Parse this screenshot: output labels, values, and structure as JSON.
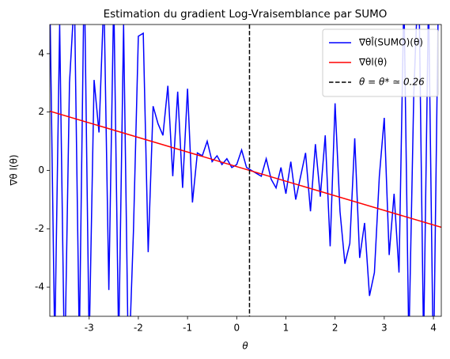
{
  "chart_data": {
    "type": "line",
    "title": "Estimation du gradient Log-Vraisemblance par SUMO",
    "xlabel": "θ",
    "ylabel": "∇θ l(θ)",
    "xlim": [
      -3.8,
      4.16
    ],
    "ylim": [
      -5,
      5
    ],
    "xticks": [
      -3,
      -2,
      -1,
      0,
      1,
      2,
      3,
      4
    ],
    "yticks": [
      -4,
      -2,
      0,
      2,
      4
    ],
    "legend": "upper right",
    "series": [
      {
        "name": "∇θl̂(SUMO)(θ)",
        "color": "#0000ff",
        "x": [
          -3.8,
          -3.7,
          -3.6,
          -3.5,
          -3.4,
          -3.3,
          -3.2,
          -3.1,
          -3.0,
          -2.9,
          -2.8,
          -2.7,
          -2.6,
          -2.5,
          -2.4,
          -2.3,
          -2.2,
          -2.1,
          -2.0,
          -1.9,
          -1.8,
          -1.7,
          -1.6,
          -1.5,
          -1.4,
          -1.3,
          -1.2,
          -1.1,
          -1.0,
          -0.9,
          -0.8,
          -0.7,
          -0.6,
          -0.5,
          -0.4,
          -0.3,
          -0.2,
          -0.1,
          0.0,
          0.1,
          0.2,
          0.3,
          0.4,
          0.5,
          0.6,
          0.7,
          0.8,
          0.9,
          1.0,
          1.1,
          1.2,
          1.3,
          1.4,
          1.5,
          1.6,
          1.7,
          1.8,
          1.9,
          2.0,
          2.1,
          2.2,
          2.3,
          2.4,
          2.5,
          2.6,
          2.7,
          2.8,
          2.9,
          3.0,
          3.1,
          3.2,
          3.3,
          3.4,
          3.5,
          3.6,
          3.7,
          3.8,
          3.9,
          4.0,
          4.1,
          4.16
        ],
        "values": [
          6,
          -6,
          5,
          -7,
          3,
          6,
          -6,
          7,
          -6,
          3.1,
          1.3,
          6,
          -4.1,
          6,
          -6,
          5,
          -7,
          -2.1,
          4.6,
          4.7,
          -2.8,
          2.2,
          1.6,
          1.2,
          2.9,
          -0.2,
          2.7,
          -0.6,
          2.8,
          -1.1,
          0.6,
          0.5,
          1.0,
          0.3,
          0.5,
          0.2,
          0.4,
          0.1,
          0.2,
          0.7,
          0.1,
          0.0,
          -0.1,
          -0.2,
          0.4,
          -0.3,
          -0.6,
          0.1,
          -0.8,
          0.3,
          -1.0,
          -0.2,
          0.6,
          -1.4,
          0.9,
          -0.9,
          1.2,
          -2.6,
          2.3,
          -1.4,
          -3.2,
          -2.5,
          1.1,
          -3.0,
          -1.8,
          -4.3,
          -3.5,
          -0.2,
          1.8,
          -2.9,
          -0.8,
          -3.5,
          6,
          -6,
          2.6,
          7,
          -6,
          6,
          -7,
          6,
          5
        ]
      },
      {
        "name": "∇θl(θ)",
        "color": "#ff0000",
        "x": [
          -3.8,
          4.16
        ],
        "values": [
          2.03,
          -1.95
        ]
      }
    ],
    "vline": {
      "x": 0.26,
      "name": "θ = θ* ≃ 0.26",
      "color": "#000000"
    }
  }
}
